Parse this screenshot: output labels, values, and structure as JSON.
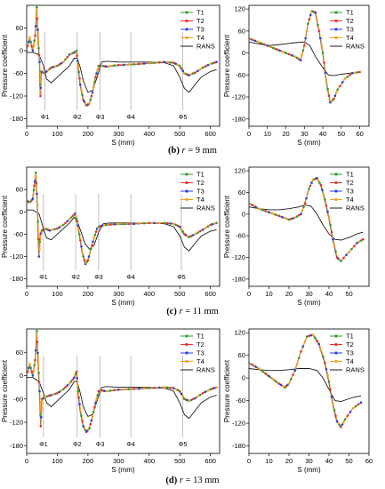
{
  "captions": [
    {
      "letter": "(b)",
      "var": "r",
      "rest": " = 9 mm"
    },
    {
      "letter": "(c)",
      "var": "r",
      "rest": " = 11 mm"
    },
    {
      "letter": "(d)",
      "var": "r",
      "rest": " = 13 mm"
    }
  ],
  "colors": {
    "T1": "#2ca02c",
    "T2": "#e8312a",
    "T3": "#2a3fe0",
    "T4": "#f5a020",
    "RANS": "#1a1a1a"
  },
  "chart_data": [
    {
      "type": "line",
      "row": 0,
      "side": "left",
      "xlabel": "S (mm)",
      "ylabel": "Pressure coefficient",
      "xlim": [
        0,
        630
      ],
      "ylim": [
        -200,
        120
      ],
      "xticks": [
        0,
        100,
        200,
        300,
        400,
        500,
        600
      ],
      "yticks": [
        60,
        0,
        -60,
        -120,
        -180
      ],
      "legend": [
        "T1",
        "T2",
        "T3",
        "T4",
        "RANS"
      ],
      "phi": [
        {
          "label": "Φ1",
          "x": 60
        },
        {
          "label": "Φ2",
          "x": 165
        },
        {
          "label": "Φ3",
          "x": 240
        },
        {
          "label": "Φ4",
          "x": 340
        },
        {
          "label": "Φ5",
          "x": 510
        }
      ],
      "test_x": [
        0,
        10,
        20,
        28,
        33,
        38,
        42,
        45,
        48,
        55,
        65,
        80,
        100,
        120,
        140,
        155,
        163,
        168,
        175,
        185,
        195,
        205,
        215,
        225,
        235,
        245,
        260,
        300,
        350,
        400,
        450,
        480,
        500,
        515,
        530,
        550,
        575,
        600,
        620
      ],
      "test_y": [
        0,
        35,
        0,
        40,
        115,
        25,
        -30,
        -120,
        -55,
        -60,
        -55,
        -45,
        -40,
        -30,
        -10,
        -5,
        0,
        -40,
        -90,
        -130,
        -145,
        -140,
        -110,
        -70,
        -40,
        -40,
        -42,
        -38,
        -36,
        -33,
        -30,
        -32,
        -40,
        -60,
        -65,
        -58,
        -45,
        -35,
        -30
      ],
      "rans_x": [
        0,
        20,
        40,
        55,
        65,
        80,
        100,
        120,
        140,
        155,
        165,
        175,
        185,
        200,
        215,
        230,
        245,
        260,
        300,
        350,
        400,
        450,
        480,
        500,
        515,
        530,
        545,
        570,
        600,
        620
      ],
      "rans_y": [
        -5,
        -5,
        -10,
        -40,
        -75,
        -85,
        -70,
        -55,
        -40,
        -20,
        -20,
        -45,
        -80,
        -110,
        -105,
        -70,
        -30,
        -28,
        -30,
        -30,
        -30,
        -32,
        -40,
        -70,
        -100,
        -110,
        -95,
        -70,
        -55,
        -50
      ]
    },
    {
      "type": "line",
      "row": 0,
      "side": "right",
      "xlabel": "S (mm)",
      "ylabel": "Pressure coefficient",
      "xlim": [
        0,
        65
      ],
      "ylim": [
        -200,
        130
      ],
      "xticks": [
        0,
        10,
        20,
        30,
        40,
        50,
        60
      ],
      "yticks": [
        120,
        60,
        0,
        -60,
        -120,
        -180
      ],
      "legend": [
        "T1",
        "T2",
        "T3",
        "T4",
        "RANS"
      ],
      "test_x": [
        0,
        5,
        10,
        15,
        20,
        25,
        28,
        30,
        32,
        34,
        36,
        38,
        40,
        42,
        44,
        46,
        48,
        52,
        56,
        60
      ],
      "test_y": [
        40,
        30,
        20,
        10,
        0,
        -10,
        -20,
        20,
        80,
        115,
        110,
        60,
        0,
        -80,
        -135,
        -125,
        -100,
        -70,
        -55,
        -52
      ],
      "rans_x": [
        0,
        5,
        10,
        15,
        20,
        25,
        30,
        33,
        36,
        40,
        43,
        46,
        50,
        55,
        60
      ],
      "rans_y": [
        30,
        25,
        20,
        22,
        25,
        28,
        30,
        20,
        -10,
        -40,
        -60,
        -62,
        -58,
        -55,
        -52
      ]
    },
    {
      "type": "line",
      "row": 1,
      "side": "left",
      "xlabel": "S (mm)",
      "ylabel": "Pressure coefficient",
      "xlim": [
        0,
        630
      ],
      "ylim": [
        -200,
        120
      ],
      "xticks": [
        0,
        100,
        200,
        300,
        400,
        500,
        600
      ],
      "yticks": [
        60,
        0,
        -60,
        -120,
        -180
      ],
      "legend": [
        "T1",
        "T2",
        "T3",
        "T4",
        "RANS"
      ],
      "phi": [
        {
          "label": "Φ1",
          "x": 55
        },
        {
          "label": "Φ2",
          "x": 160
        },
        {
          "label": "Φ3",
          "x": 235
        },
        {
          "label": "Φ4",
          "x": 340
        },
        {
          "label": "Φ5",
          "x": 505
        }
      ],
      "test_x": [
        0,
        10,
        20,
        25,
        30,
        35,
        40,
        45,
        50,
        60,
        75,
        100,
        120,
        140,
        158,
        165,
        172,
        182,
        192,
        200,
        210,
        220,
        230,
        240,
        260,
        300,
        350,
        400,
        450,
        480,
        500,
        515,
        530,
        550,
        575,
        600,
        620
      ],
      "test_y": [
        30,
        25,
        35,
        70,
        105,
        20,
        -120,
        -60,
        -50,
        -45,
        -50,
        -45,
        -35,
        -20,
        -5,
        -25,
        -60,
        -110,
        -140,
        -130,
        -100,
        -70,
        -45,
        -38,
        -35,
        -33,
        -32,
        -30,
        -30,
        -32,
        -40,
        -60,
        -68,
        -60,
        -48,
        -35,
        -30
      ],
      "rans_x": [
        0,
        20,
        40,
        55,
        65,
        80,
        100,
        120,
        140,
        155,
        165,
        178,
        190,
        205,
        220,
        235,
        250,
        270,
        300,
        350,
        400,
        450,
        480,
        500,
        515,
        530,
        545,
        570,
        600,
        620
      ],
      "rans_y": [
        5,
        5,
        -5,
        -45,
        -70,
        -75,
        -60,
        -45,
        -30,
        -15,
        -25,
        -55,
        -85,
        -100,
        -90,
        -55,
        -32,
        -30,
        -30,
        -30,
        -30,
        -32,
        -40,
        -65,
        -95,
        -105,
        -90,
        -65,
        -52,
        -48
      ]
    },
    {
      "type": "line",
      "row": 1,
      "side": "right",
      "xlabel": "S (mm)",
      "ylabel": "Pressure coefficient",
      "xlim": [
        0,
        60
      ],
      "ylim": [
        -200,
        130
      ],
      "xticks": [
        0,
        10,
        20,
        30,
        40,
        50
      ],
      "yticks": [
        120,
        60,
        0,
        -60,
        -120,
        -180
      ],
      "legend": [
        "T1",
        "T2",
        "T3",
        "T4",
        "RANS"
      ],
      "test_x": [
        0,
        5,
        10,
        15,
        20,
        23,
        26,
        28,
        30,
        32,
        34,
        36,
        38,
        40,
        42,
        44,
        46,
        50,
        54,
        57
      ],
      "test_y": [
        30,
        15,
        5,
        -5,
        -15,
        -10,
        0,
        30,
        70,
        95,
        100,
        80,
        40,
        -10,
        -70,
        -120,
        -130,
        -105,
        -80,
        -70
      ],
      "rans_x": [
        0,
        5,
        10,
        15,
        20,
        25,
        28,
        31,
        34,
        37,
        40,
        43,
        46,
        50,
        54,
        57
      ],
      "rans_y": [
        20,
        15,
        12,
        12,
        15,
        20,
        25,
        22,
        0,
        -30,
        -55,
        -70,
        -72,
        -65,
        -55,
        -50
      ]
    },
    {
      "type": "line",
      "row": 2,
      "side": "left",
      "xlabel": "S (mm)",
      "ylabel": "Pressure coefficient",
      "xlim": [
        0,
        630
      ],
      "ylim": [
        -200,
        120
      ],
      "xticks": [
        0,
        100,
        200,
        300,
        400,
        500,
        600
      ],
      "yticks": [
        60,
        0,
        -60,
        -120,
        -180
      ],
      "legend": [
        "T1",
        "T2",
        "T3",
        "T4",
        "RANS"
      ],
      "phi": [
        {
          "label": "Φ1",
          "x": 55
        },
        {
          "label": "Φ2",
          "x": 165
        },
        {
          "label": "Φ3",
          "x": 240
        },
        {
          "label": "Φ4",
          "x": 340
        },
        {
          "label": "Φ5",
          "x": 510
        }
      ],
      "test_x": [
        0,
        10,
        20,
        28,
        33,
        38,
        42,
        46,
        50,
        60,
        80,
        100,
        120,
        140,
        155,
        163,
        168,
        175,
        185,
        195,
        205,
        215,
        225,
        235,
        245,
        260,
        300,
        350,
        400,
        450,
        480,
        500,
        515,
        530,
        550,
        575,
        600,
        620
      ],
      "test_y": [
        0,
        30,
        0,
        40,
        115,
        30,
        -40,
        -130,
        -60,
        -55,
        -50,
        -45,
        -35,
        -20,
        -5,
        10,
        -40,
        -90,
        -130,
        -145,
        -135,
        -105,
        -70,
        -40,
        -38,
        -40,
        -36,
        -34,
        -32,
        -30,
        -32,
        -40,
        -60,
        -65,
        -58,
        -45,
        -35,
        -30
      ],
      "rans_x": [
        0,
        20,
        40,
        55,
        65,
        80,
        100,
        120,
        140,
        155,
        165,
        175,
        185,
        200,
        215,
        230,
        245,
        260,
        300,
        350,
        400,
        450,
        480,
        500,
        515,
        530,
        545,
        570,
        600,
        620
      ],
      "rans_y": [
        -5,
        -5,
        -15,
        -45,
        -70,
        -80,
        -65,
        -50,
        -35,
        -15,
        -15,
        -45,
        -80,
        -105,
        -100,
        -65,
        -30,
        -28,
        -30,
        -30,
        -30,
        -32,
        -40,
        -70,
        -100,
        -110,
        -95,
        -70,
        -55,
        -50
      ]
    },
    {
      "type": "line",
      "row": 2,
      "side": "right",
      "xlabel": "S (mm)",
      "ylabel": "Pressure coefficient",
      "xlim": [
        0,
        60
      ],
      "ylim": [
        -200,
        130
      ],
      "xticks": [
        0,
        10,
        20,
        30,
        40,
        50,
        60
      ],
      "yticks": [
        120,
        60,
        0,
        -60,
        -120,
        -180
      ],
      "legend": [
        "T1",
        "T2",
        "T3",
        "T4",
        "RANS"
      ],
      "test_x": [
        0,
        5,
        10,
        15,
        18,
        20,
        23,
        26,
        29,
        32,
        35,
        38,
        40,
        42,
        44,
        46,
        48,
        52,
        56
      ],
      "test_y": [
        40,
        25,
        5,
        -15,
        -25,
        -15,
        20,
        70,
        110,
        115,
        90,
        40,
        -10,
        -70,
        -115,
        -130,
        -110,
        -80,
        -65
      ],
      "rans_x": [
        0,
        5,
        10,
        15,
        20,
        25,
        30,
        34,
        37,
        40,
        43,
        46,
        50,
        53,
        56
      ],
      "rans_y": [
        25,
        22,
        20,
        20,
        22,
        25,
        25,
        20,
        0,
        -30,
        -60,
        -62,
        -55,
        -50,
        -48
      ]
    }
  ]
}
